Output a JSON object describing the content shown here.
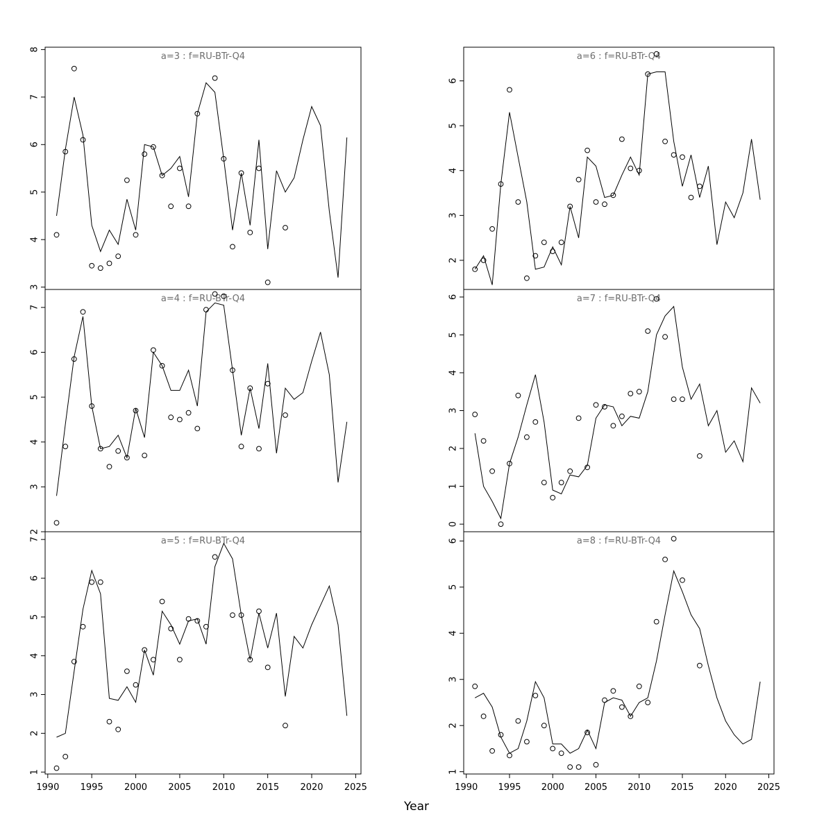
{
  "figure": {
    "xlabel": "Year",
    "background": "#ffffff",
    "line_color": "#000000",
    "point_color": "#000000",
    "title_color": "#6e6e6e"
  },
  "chart_data": [
    {
      "type": "line",
      "id": "a3",
      "title": "a=3 : f=RU-BTr-Q4",
      "grid": {
        "col": 0,
        "row": 0
      },
      "xlim": [
        1989.7,
        2025.6
      ],
      "xticks": [
        1990,
        1995,
        2000,
        2005,
        2010,
        2015,
        2020,
        2025
      ],
      "ylim": [
        2.95,
        8.05
      ],
      "yticks": [
        3,
        4,
        5,
        6,
        7,
        8
      ],
      "show_x_tick_labels": false,
      "x": [
        1991,
        1992,
        1993,
        1994,
        1995,
        1996,
        1997,
        1998,
        1999,
        2000,
        2001,
        2002,
        2003,
        2004,
        2005,
        2006,
        2007,
        2008,
        2009,
        2010,
        2011,
        2012,
        2013,
        2014,
        2015,
        2016,
        2017,
        2018,
        2019,
        2020,
        2021,
        2022,
        2023,
        2024
      ],
      "series": [
        {
          "name": "fitted",
          "style": "line",
          "values": [
            4.5,
            5.9,
            7.0,
            6.2,
            4.3,
            3.75,
            4.2,
            3.9,
            4.85,
            4.2,
            6.0,
            5.95,
            5.35,
            5.5,
            5.75,
            4.9,
            6.65,
            7.3,
            7.1,
            5.7,
            4.2,
            5.4,
            4.3,
            6.1,
            3.8,
            5.45,
            5.0,
            5.3,
            6.1,
            6.8,
            6.4,
            4.6,
            3.2,
            6.15
          ]
        },
        {
          "name": "observed",
          "style": "points",
          "values": [
            4.1,
            5.85,
            7.6,
            6.1,
            3.45,
            3.4,
            3.5,
            3.65,
            5.25,
            4.1,
            5.8,
            5.95,
            5.35,
            4.7,
            5.5,
            4.7,
            6.65,
            null,
            7.4,
            5.7,
            3.85,
            5.4,
            4.15,
            5.5,
            3.1,
            null,
            4.25,
            null,
            null,
            null,
            null,
            null,
            null,
            null
          ]
        }
      ]
    },
    {
      "type": "line",
      "id": "a6",
      "title": "a=6 : f=RU-BTr-Q4",
      "grid": {
        "col": 1,
        "row": 0
      },
      "xlim": [
        1989.7,
        2025.6
      ],
      "xticks": [
        1990,
        1995,
        2000,
        2005,
        2010,
        2015,
        2020,
        2025
      ],
      "ylim": [
        1.35,
        6.75
      ],
      "yticks": [
        2,
        3,
        4,
        5,
        6
      ],
      "show_x_tick_labels": false,
      "x": [
        1991,
        1992,
        1993,
        1994,
        1995,
        1996,
        1997,
        1998,
        1999,
        2000,
        2001,
        2002,
        2003,
        2004,
        2005,
        2006,
        2007,
        2008,
        2009,
        2010,
        2011,
        2012,
        2013,
        2014,
        2015,
        2016,
        2017,
        2018,
        2019,
        2020,
        2021,
        2022,
        2023,
        2024
      ],
      "series": [
        {
          "name": "fitted",
          "style": "line",
          "values": [
            1.8,
            2.1,
            1.45,
            3.7,
            5.3,
            4.3,
            3.3,
            1.8,
            1.85,
            2.3,
            1.9,
            3.2,
            2.5,
            4.3,
            4.1,
            3.4,
            3.45,
            3.9,
            4.3,
            3.9,
            6.15,
            6.2,
            6.2,
            4.65,
            3.65,
            4.35,
            3.4,
            4.1,
            2.35,
            3.3,
            2.95,
            3.5,
            4.7,
            3.35
          ]
        },
        {
          "name": "observed",
          "style": "points",
          "values": [
            1.8,
            2.0,
            2.7,
            3.7,
            5.8,
            3.3,
            1.6,
            2.1,
            2.4,
            2.2,
            2.4,
            3.2,
            3.8,
            4.45,
            3.3,
            3.25,
            3.45,
            4.7,
            4.05,
            4.0,
            6.15,
            6.6,
            4.65,
            4.35,
            4.3,
            3.4,
            3.65,
            null,
            null,
            null,
            null,
            null,
            null,
            null
          ]
        }
      ]
    },
    {
      "type": "line",
      "id": "a4",
      "title": "a=4 : f=RU-BTr-Q4",
      "grid": {
        "col": 0,
        "row": 1
      },
      "xlim": [
        1989.7,
        2025.6
      ],
      "xticks": [
        1990,
        1995,
        2000,
        2005,
        2010,
        2015,
        2020,
        2025
      ],
      "ylim": [
        2.0,
        7.4
      ],
      "yticks": [
        2,
        3,
        4,
        5,
        6,
        7
      ],
      "show_x_tick_labels": false,
      "x": [
        1991,
        1992,
        1993,
        1994,
        1995,
        1996,
        1997,
        1998,
        1999,
        2000,
        2001,
        2002,
        2003,
        2004,
        2005,
        2006,
        2007,
        2008,
        2009,
        2010,
        2011,
        2012,
        2013,
        2014,
        2015,
        2016,
        2017,
        2018,
        2019,
        2020,
        2021,
        2022,
        2023,
        2024
      ],
      "series": [
        {
          "name": "fitted",
          "style": "line",
          "values": [
            2.8,
            4.4,
            5.9,
            6.8,
            4.8,
            3.85,
            3.9,
            4.15,
            3.65,
            4.75,
            4.1,
            6.0,
            5.7,
            5.15,
            5.15,
            5.6,
            4.8,
            6.9,
            7.1,
            7.05,
            5.6,
            4.15,
            5.2,
            4.3,
            5.75,
            3.75,
            5.2,
            4.95,
            5.1,
            5.8,
            6.45,
            5.5,
            3.1,
            4.45
          ]
        },
        {
          "name": "observed",
          "style": "points",
          "values": [
            2.2,
            3.9,
            5.85,
            6.9,
            4.8,
            3.85,
            3.45,
            3.8,
            3.65,
            4.7,
            3.7,
            6.05,
            5.7,
            4.55,
            4.5,
            4.65,
            4.3,
            6.95,
            7.3,
            7.25,
            5.6,
            3.9,
            5.2,
            3.85,
            5.3,
            null,
            4.6,
            null,
            null,
            null,
            null,
            null,
            null,
            null
          ]
        }
      ]
    },
    {
      "type": "line",
      "id": "a7",
      "title": "a=7 : f=RU-BTr-Q4",
      "grid": {
        "col": 1,
        "row": 1
      },
      "xlim": [
        1989.7,
        2025.6
      ],
      "xticks": [
        1990,
        1995,
        2000,
        2005,
        2010,
        2015,
        2020,
        2025
      ],
      "ylim": [
        -0.2,
        6.2
      ],
      "yticks": [
        0,
        1,
        2,
        3,
        4,
        5,
        6
      ],
      "show_x_tick_labels": false,
      "x": [
        1991,
        1992,
        1993,
        1994,
        1995,
        1996,
        1997,
        1998,
        1999,
        2000,
        2001,
        2002,
        2003,
        2004,
        2005,
        2006,
        2007,
        2008,
        2009,
        2010,
        2011,
        2012,
        2013,
        2014,
        2015,
        2016,
        2017,
        2018,
        2019,
        2020,
        2021,
        2022,
        2023,
        2024
      ],
      "series": [
        {
          "name": "fitted",
          "style": "line",
          "values": [
            2.4,
            1.0,
            0.6,
            0.15,
            1.6,
            2.3,
            3.15,
            3.95,
            2.7,
            0.9,
            0.8,
            1.3,
            1.25,
            1.55,
            2.8,
            3.15,
            3.1,
            2.6,
            2.85,
            2.8,
            3.5,
            5.0,
            5.5,
            5.75,
            4.15,
            3.3,
            3.7,
            2.6,
            3.0,
            1.9,
            2.2,
            1.65,
            3.6,
            3.2
          ]
        },
        {
          "name": "observed",
          "style": "points",
          "values": [
            2.9,
            2.2,
            1.4,
            0.0,
            1.6,
            3.4,
            2.3,
            2.7,
            1.1,
            0.7,
            1.1,
            1.4,
            2.8,
            1.5,
            3.15,
            3.1,
            2.6,
            2.85,
            3.45,
            3.5,
            5.1,
            5.95,
            4.95,
            3.3,
            3.3,
            null,
            1.8,
            null,
            null,
            null,
            null,
            null,
            null,
            null
          ]
        }
      ]
    },
    {
      "type": "line",
      "id": "a5",
      "title": "a=5 : f=RU-BTr-Q4",
      "grid": {
        "col": 0,
        "row": 2
      },
      "xlim": [
        1989.7,
        2025.6
      ],
      "xticks": [
        1990,
        1995,
        2000,
        2005,
        2010,
        2015,
        2020,
        2025
      ],
      "ylim": [
        0.95,
        7.2
      ],
      "yticks": [
        1,
        2,
        3,
        4,
        5,
        6,
        7
      ],
      "show_x_tick_labels": true,
      "x": [
        1991,
        1992,
        1993,
        1994,
        1995,
        1996,
        1997,
        1998,
        1999,
        2000,
        2001,
        2002,
        2003,
        2004,
        2005,
        2006,
        2007,
        2008,
        2009,
        2010,
        2011,
        2012,
        2013,
        2014,
        2015,
        2016,
        2017,
        2018,
        2019,
        2020,
        2021,
        2022,
        2023,
        2024
      ],
      "series": [
        {
          "name": "fitted",
          "style": "line",
          "values": [
            1.9,
            2.0,
            3.6,
            5.2,
            6.2,
            5.6,
            2.9,
            2.85,
            3.2,
            2.8,
            4.15,
            3.5,
            5.15,
            4.8,
            4.3,
            4.9,
            4.95,
            4.3,
            6.3,
            6.9,
            6.5,
            5.05,
            3.9,
            5.1,
            4.2,
            5.1,
            2.95,
            4.5,
            4.2,
            4.8,
            5.3,
            5.8,
            4.8,
            2.45
          ]
        },
        {
          "name": "observed",
          "style": "points",
          "values": [
            1.1,
            1.4,
            3.85,
            4.75,
            5.9,
            5.9,
            2.3,
            2.1,
            3.6,
            3.25,
            4.15,
            3.9,
            5.4,
            4.7,
            3.9,
            4.95,
            4.9,
            4.75,
            6.55,
            null,
            5.05,
            5.05,
            3.9,
            5.15,
            3.7,
            null,
            2.2,
            null,
            null,
            null,
            null,
            null,
            null,
            null
          ]
        }
      ]
    },
    {
      "type": "line",
      "id": "a8",
      "title": "a=8 : f=RU-BTr-Q4",
      "grid": {
        "col": 1,
        "row": 2
      },
      "xlim": [
        1989.7,
        2025.6
      ],
      "xticks": [
        1990,
        1995,
        2000,
        2005,
        2010,
        2015,
        2020,
        2025
      ],
      "ylim": [
        0.95,
        6.2
      ],
      "yticks": [
        1,
        2,
        3,
        4,
        5,
        6
      ],
      "show_x_tick_labels": true,
      "x": [
        1991,
        1992,
        1993,
        1994,
        1995,
        1996,
        1997,
        1998,
        1999,
        2000,
        2001,
        2002,
        2003,
        2004,
        2005,
        2006,
        2007,
        2008,
        2009,
        2010,
        2011,
        2012,
        2013,
        2014,
        2015,
        2016,
        2017,
        2018,
        2019,
        2020,
        2021,
        2022,
        2023,
        2024
      ],
      "series": [
        {
          "name": "fitted",
          "style": "line",
          "values": [
            2.6,
            2.7,
            2.4,
            1.75,
            1.4,
            1.5,
            2.1,
            2.95,
            2.6,
            1.6,
            1.6,
            1.4,
            1.5,
            1.9,
            1.5,
            2.5,
            2.6,
            2.55,
            2.2,
            2.5,
            2.6,
            3.4,
            4.4,
            5.35,
            4.9,
            4.4,
            4.1,
            3.3,
            2.6,
            2.1,
            1.8,
            1.6,
            1.7,
            2.95
          ]
        },
        {
          "name": "observed",
          "style": "points",
          "values": [
            2.85,
            2.2,
            1.45,
            1.8,
            1.35,
            2.1,
            1.65,
            2.65,
            2.0,
            1.5,
            1.4,
            1.1,
            1.1,
            1.85,
            1.15,
            2.55,
            2.75,
            2.4,
            2.2,
            2.85,
            2.5,
            4.25,
            5.6,
            6.05,
            5.15,
            null,
            3.3,
            null,
            null,
            null,
            null,
            null,
            null,
            null
          ]
        }
      ]
    }
  ]
}
